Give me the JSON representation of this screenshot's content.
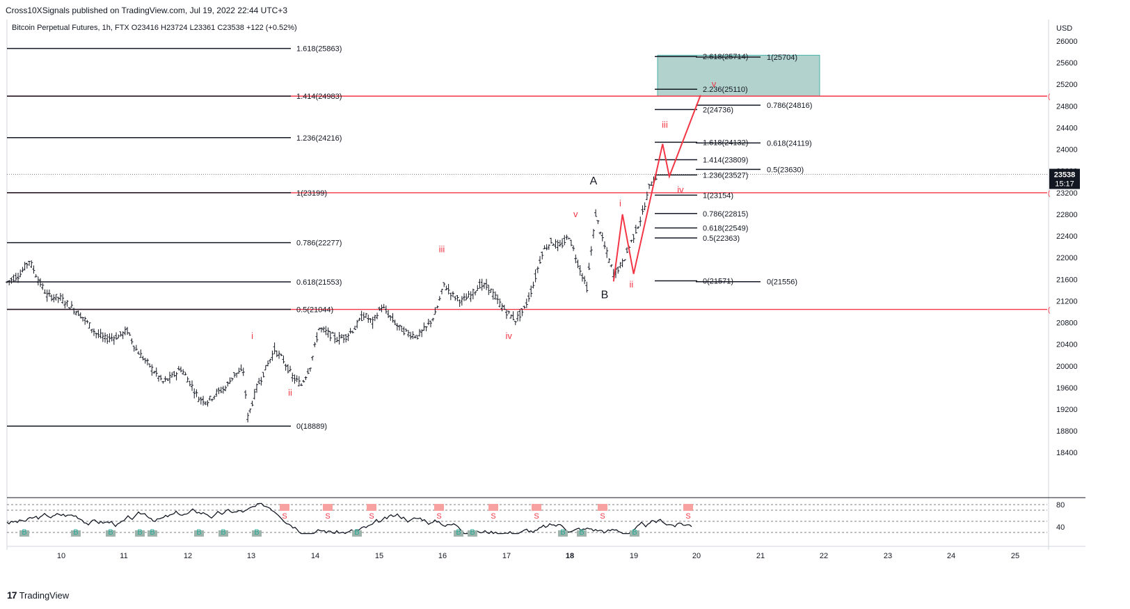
{
  "header": {
    "published": "Cross10XSignals published on TradingView.com, Jul 19, 2022 22:44 UTC+3",
    "symbol_line": "Bitcoin Perpetual Futures, 1h, FTX  O23416  H23724  L23361  C23538  +122 (+0.52%)"
  },
  "brand": {
    "logo": "17",
    "name": "TradingView"
  },
  "chart_data": {
    "type": "candlestick",
    "currency_label": "USD",
    "price_axis": {
      "min": 18000,
      "max": 26200,
      "ticks": [
        18400,
        18800,
        19200,
        19600,
        20000,
        20400,
        20800,
        21200,
        21600,
        22000,
        22400,
        22800,
        23200,
        23600,
        24000,
        24400,
        24800,
        25200,
        25600,
        26000
      ]
    },
    "date_ticks": [
      "10",
      "11",
      "12",
      "13",
      "14",
      "15",
      "16",
      "17",
      "18",
      "19",
      "20",
      "21",
      "22",
      "23",
      "24",
      "25"
    ],
    "last_price": {
      "value": "23538",
      "countdown": "15:17",
      "price": 23538
    },
    "candles_hourly_anchor_path": [
      [
        0,
        21550
      ],
      [
        6,
        21700
      ],
      [
        10,
        21950
      ],
      [
        14,
        21600
      ],
      [
        18,
        21300
      ],
      [
        24,
        21250
      ],
      [
        30,
        21050
      ],
      [
        34,
        20900
      ],
      [
        40,
        20600
      ],
      [
        44,
        20500
      ],
      [
        50,
        20550
      ],
      [
        54,
        20650
      ],
      [
        58,
        20300
      ],
      [
        62,
        20100
      ],
      [
        66,
        19900
      ],
      [
        70,
        19700
      ],
      [
        74,
        19800
      ],
      [
        78,
        19950
      ],
      [
        82,
        19700
      ],
      [
        86,
        19400
      ],
      [
        90,
        19350
      ],
      [
        94,
        19500
      ],
      [
        98,
        19600
      ],
      [
        102,
        19850
      ],
      [
        106,
        19900
      ],
      [
        108,
        19050
      ],
      [
        112,
        19600
      ],
      [
        116,
        19950
      ],
      [
        120,
        20300
      ],
      [
        124,
        20100
      ],
      [
        128,
        19800
      ],
      [
        132,
        19650
      ],
      [
        136,
        20000
      ],
      [
        140,
        20700
      ],
      [
        144,
        20600
      ],
      [
        148,
        20500
      ],
      [
        152,
        20550
      ],
      [
        156,
        20700
      ],
      [
        160,
        20950
      ],
      [
        164,
        20800
      ],
      [
        168,
        21100
      ],
      [
        172,
        20900
      ],
      [
        176,
        20700
      ],
      [
        180,
        20600
      ],
      [
        184,
        20550
      ],
      [
        188,
        20700
      ],
      [
        192,
        20950
      ],
      [
        196,
        21500
      ],
      [
        200,
        21300
      ],
      [
        204,
        21200
      ],
      [
        208,
        21300
      ],
      [
        212,
        21500
      ],
      [
        216,
        21450
      ],
      [
        220,
        21200
      ],
      [
        224,
        21000
      ],
      [
        228,
        20850
      ],
      [
        232,
        21050
      ],
      [
        236,
        21500
      ],
      [
        240,
        22100
      ],
      [
        244,
        22300
      ],
      [
        248,
        22200
      ],
      [
        252,
        22400
      ],
      [
        256,
        21900
      ],
      [
        260,
        21450
      ],
      [
        264,
        22800
      ],
      [
        268,
        22200
      ],
      [
        272,
        21700
      ],
      [
        276,
        21900
      ],
      [
        280,
        22300
      ],
      [
        284,
        22700
      ],
      [
        286,
        22950
      ],
      [
        288,
        23300
      ],
      [
        290,
        23450
      ],
      [
        292,
        23538
      ]
    ],
    "horizontal_lines": [
      {
        "price": 23199,
        "color": "#f23645"
      },
      {
        "price": 21044,
        "color": "#f23645"
      },
      {
        "price": 24983,
        "color": "#f23645"
      }
    ],
    "fib_left": [
      {
        "label": "1.618(25863)",
        "price": 25863
      },
      {
        "label": "1.414(24983)",
        "price": 24983
      },
      {
        "label": "1.236(24216)",
        "price": 24216
      },
      {
        "label": "1(23199)",
        "price": 23199
      },
      {
        "label": "0.786(22277)",
        "price": 22277
      },
      {
        "label": "0.618(21553)",
        "price": 21553
      },
      {
        "label": "0.5(21044)",
        "price": 21044
      },
      {
        "label": "0(18889)",
        "price": 18889
      }
    ],
    "fib_right_a": [
      {
        "label": "2.618(25714)",
        "price": 25714
      },
      {
        "label": "2.236(25110)",
        "price": 25110
      },
      {
        "label": "2(24736)",
        "price": 24736
      },
      {
        "label": "1.618(24132)",
        "price": 24132
      },
      {
        "label": "1.414(23809)",
        "price": 23809
      },
      {
        "label": "1.236(23527)",
        "price": 23527
      },
      {
        "label": "1(23154)",
        "price": 23154
      },
      {
        "label": "0.786(22815)",
        "price": 22815
      },
      {
        "label": "0.618(22549)",
        "price": 22549
      },
      {
        "label": "0.5(22363)",
        "price": 22363
      },
      {
        "label": "0(21571)",
        "price": 21571
      }
    ],
    "fib_right_b": [
      {
        "label": "1(25704)",
        "price": 25704
      },
      {
        "label": "0.786(24816)",
        "price": 24816
      },
      {
        "label": "0.618(24119)",
        "price": 24119
      },
      {
        "label": "0.5(23630)",
        "price": 23630
      },
      {
        "label": "0(21556)",
        "price": 21556
      }
    ],
    "target_box": {
      "price_top": 25714,
      "price_bottom": 24983,
      "color": "#b2d3cd"
    },
    "wave_labels": [
      {
        "text": "i",
        "hour": 110,
        "price": 20500,
        "color": "#f23645"
      },
      {
        "text": "ii",
        "hour": 127,
        "price": 19450,
        "color": "#f23645"
      },
      {
        "text": "iii",
        "hour": 195,
        "price": 22100,
        "color": "#f23645"
      },
      {
        "text": "iv",
        "hour": 225,
        "price": 20500,
        "color": "#f23645"
      },
      {
        "text": "v",
        "hour": 255,
        "price": 22750,
        "color": "#f23645"
      },
      {
        "text": "A",
        "hour": 263,
        "price": 23350,
        "color": "#131722"
      },
      {
        "text": "B",
        "hour": 268,
        "price": 21250,
        "color": "#131722"
      },
      {
        "text": "i",
        "hour": 275,
        "price": 22950,
        "color": "#f23645"
      },
      {
        "text": "ii",
        "hour": 280,
        "price": 21450,
        "color": "#f23645"
      },
      {
        "text": "iii",
        "hour": 295,
        "price": 24400,
        "color": "#f23645"
      },
      {
        "text": "iv",
        "hour": 302,
        "price": 23200,
        "color": "#f23645"
      },
      {
        "text": "v",
        "hour": 317,
        "price": 25150,
        "color": "#f23645"
      }
    ],
    "projection_path": [
      [
        272,
        21560
      ],
      [
        276,
        22800
      ],
      [
        281,
        21700
      ],
      [
        294,
        24100
      ],
      [
        297,
        23500
      ],
      [
        311,
        25000
      ]
    ],
    "oscillator": {
      "levels": [
        80,
        40
      ],
      "label_buy": "B",
      "label_sell": "S"
    }
  }
}
